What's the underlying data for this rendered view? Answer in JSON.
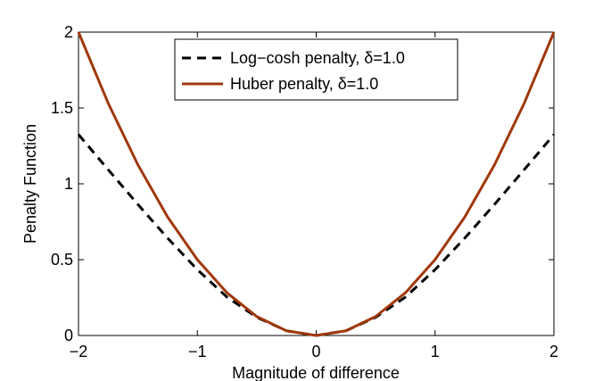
{
  "chart_data": {
    "type": "line",
    "title": "",
    "xlabel": "Magnitude of difference",
    "ylabel": "Penalty Function",
    "xlim": [
      -2,
      2
    ],
    "ylim": [
      0,
      2
    ],
    "xticks": [
      -2,
      -1,
      0,
      1,
      2
    ],
    "xtick_labels": [
      "−2",
      "−1",
      "0",
      "1",
      "2"
    ],
    "yticks": [
      0,
      0.5,
      1,
      1.5,
      2
    ],
    "ytick_labels": [
      "0",
      "0.5",
      "1",
      "1.5",
      "2"
    ],
    "grid": false,
    "legend_position": "top-center",
    "series": [
      {
        "name": "Log−cosh penalty, δ=1.0",
        "style": "dashed",
        "color": "#000000",
        "x": [
          -2,
          -1.75,
          -1.5,
          -1.25,
          -1,
          -0.75,
          -0.5,
          -0.25,
          0,
          0.25,
          0.5,
          0.75,
          1,
          1.25,
          1.5,
          1.75,
          2
        ],
        "y": [
          1.325,
          1.093,
          0.864,
          0.642,
          0.434,
          0.253,
          0.12,
          0.031,
          0,
          0.031,
          0.12,
          0.253,
          0.434,
          0.642,
          0.864,
          1.093,
          1.325
        ]
      },
      {
        "name": "Huber penalty, δ=1.0",
        "style": "solid",
        "color": "#a0380c",
        "x": [
          -2,
          -1.75,
          -1.5,
          -1.25,
          -1,
          -0.75,
          -0.5,
          -0.25,
          0,
          0.25,
          0.5,
          0.75,
          1,
          1.25,
          1.5,
          1.75,
          2
        ],
        "y": [
          2.0,
          1.531,
          1.125,
          0.781,
          0.5,
          0.281,
          0.125,
          0.031,
          0,
          0.031,
          0.125,
          0.281,
          0.5,
          0.781,
          1.125,
          1.531,
          2.0
        ]
      }
    ]
  }
}
